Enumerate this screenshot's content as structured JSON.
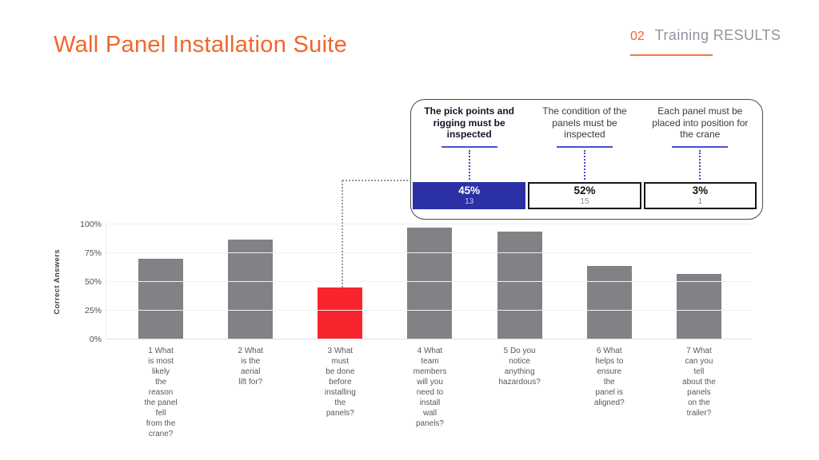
{
  "title": "Wall Panel Installation Suite",
  "header": {
    "number": "02",
    "label": "Training RESULTS"
  },
  "colors": {
    "accent_orange": "#F0662B",
    "bar_gray": "#808285",
    "bar_red": "#F8252E",
    "highlight_blue": "#2B30A5",
    "underline_blue": "#4D4DD9"
  },
  "callout": {
    "options": [
      {
        "text": "The pick points and\nrigging must be\ninspected",
        "pct": "45%",
        "count": "13",
        "highlighted": true
      },
      {
        "text": "The condition of the\npanels must be\ninspected",
        "pct": "52%",
        "count": "15",
        "highlighted": false
      },
      {
        "text": "Each panel must be\nplaced into position for\nthe crane",
        "pct": "3%",
        "count": "1",
        "highlighted": false
      }
    ]
  },
  "chart_data": {
    "type": "bar",
    "title": "",
    "xlabel": "",
    "ylabel": "Correct Answers",
    "ylim": [
      0,
      100
    ],
    "yticks": [
      "0%",
      "25%",
      "50%",
      "75%",
      "100%"
    ],
    "grid": true,
    "legend": false,
    "categories": [
      "1 What\nis most\nlikely\nthe\nreason\nthe panel\nfell\nfrom the\ncrane?",
      "2 What\nis the\naerial\nlift for?",
      "3 What\nmust\nbe done\nbefore\ninstalling\nthe\npanels?",
      "4 What\nteam\nmembers\nwill you\nneed to\ninstall\nwall\npanels?",
      "5 Do you\nnotice\nanything\nhazardous?",
      "6 What\nhelps to\nensure\nthe\npanel is\naligned?",
      "7 What\ncan you\ntell\nabout the\npanels\non the\ntrailer?"
    ],
    "values": [
      70,
      87,
      45,
      97,
      94,
      64,
      57
    ],
    "highlight_index": 2
  }
}
